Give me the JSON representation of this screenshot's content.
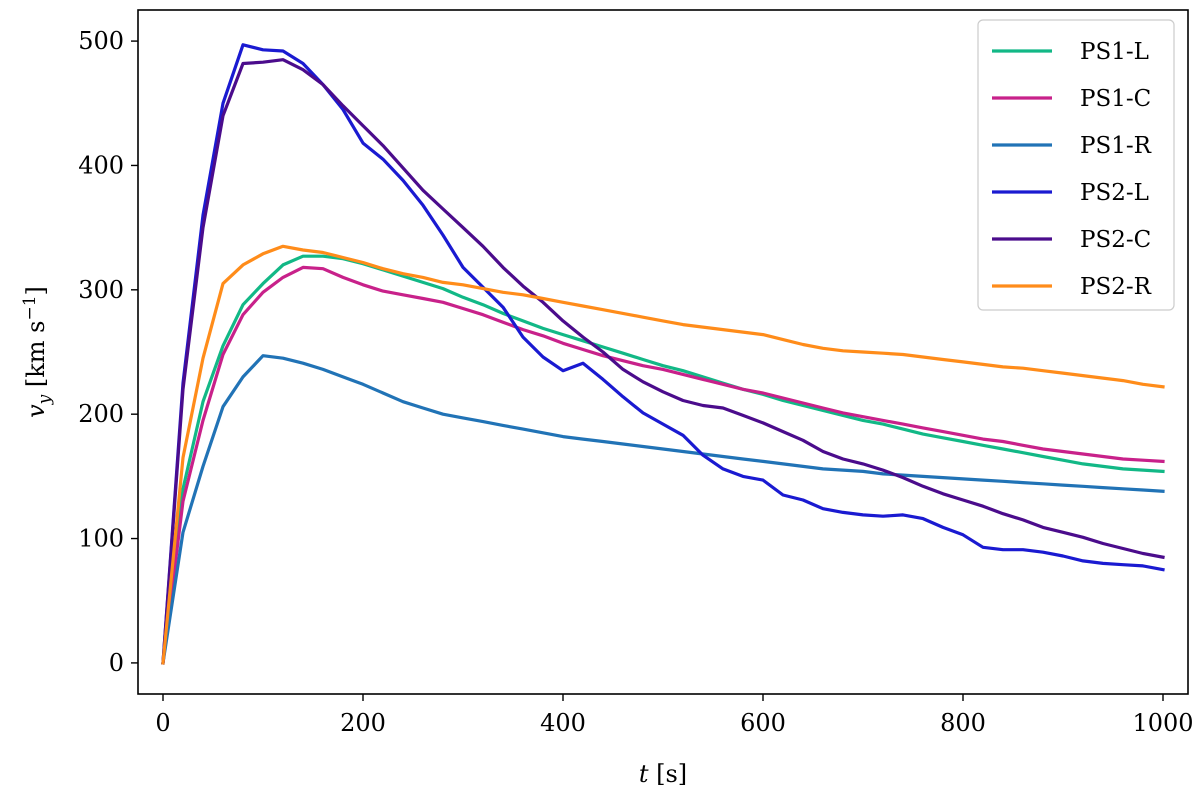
{
  "chart_data": {
    "type": "line",
    "xlabel_var": "t",
    "xlabel_unit": " [s]",
    "ylabel_var": "v",
    "ylabel_sub": "y",
    "ylabel_unit": " [km s",
    "ylabel_exp": "−1",
    "ylabel_close": "]",
    "xlim": [
      -25,
      1025
    ],
    "ylim": [
      -25,
      525
    ],
    "xticks": [
      0,
      200,
      400,
      600,
      800,
      1000
    ],
    "yticks": [
      0,
      100,
      200,
      300,
      400,
      500
    ],
    "grid": false,
    "legend_position": "top-right",
    "x": [
      0,
      20,
      40,
      60,
      80,
      100,
      120,
      140,
      160,
      180,
      200,
      220,
      240,
      260,
      280,
      300,
      320,
      340,
      360,
      380,
      400,
      420,
      440,
      460,
      480,
      500,
      520,
      540,
      560,
      580,
      600,
      620,
      640,
      660,
      680,
      700,
      720,
      740,
      760,
      780,
      800,
      820,
      840,
      860,
      880,
      900,
      920,
      940,
      960,
      980,
      1000
    ],
    "series": [
      {
        "name": "PS1-L",
        "color": "#12b886",
        "values": [
          0,
          140,
          210,
          255,
          288,
          305,
          320,
          327,
          327,
          325,
          321,
          316,
          311,
          306,
          301,
          294,
          288,
          281,
          275,
          269,
          264,
          259,
          254,
          249,
          244,
          239,
          235,
          230,
          225,
          220,
          216,
          211,
          207,
          203,
          199,
          195,
          192,
          188,
          184,
          181,
          178,
          175,
          172,
          169,
          166,
          163,
          160,
          158,
          156,
          155,
          154
        ]
      },
      {
        "name": "PS1-C",
        "color": "#c8218a",
        "values": [
          0,
          130,
          195,
          248,
          280,
          298,
          310,
          318,
          317,
          310,
          304,
          299,
          296,
          293,
          290,
          285,
          280,
          274,
          268,
          263,
          257,
          252,
          247,
          243,
          239,
          236,
          232,
          228,
          224,
          220,
          217,
          213,
          209,
          205,
          201,
          198,
          195,
          192,
          189,
          186,
          183,
          180,
          178,
          175,
          172,
          170,
          168,
          166,
          164,
          163,
          162
        ]
      },
      {
        "name": "PS1-R",
        "color": "#2173b6",
        "values": [
          0,
          105,
          158,
          206,
          230,
          247,
          245,
          241,
          236,
          230,
          224,
          217,
          210,
          205,
          200,
          197,
          194,
          191,
          188,
          185,
          182,
          180,
          178,
          176,
          174,
          172,
          170,
          168,
          166,
          164,
          162,
          160,
          158,
          156,
          155,
          154,
          152,
          151,
          150,
          149,
          148,
          147,
          146,
          145,
          144,
          143,
          142,
          141,
          140,
          139,
          138
        ]
      },
      {
        "name": "PS2-L",
        "color": "#1a1ad1",
        "values": [
          0,
          225,
          360,
          450,
          497,
          493,
          492,
          482,
          465,
          445,
          418,
          405,
          388,
          368,
          344,
          318,
          302,
          286,
          262,
          246,
          235,
          241,
          228,
          214,
          201,
          192,
          183,
          167,
          156,
          150,
          147,
          135,
          131,
          124,
          121,
          119,
          118,
          119,
          116,
          109,
          103,
          93,
          91,
          91,
          89,
          86,
          82,
          80,
          79,
          78,
          75
        ]
      },
      {
        "name": "PS2-C",
        "color": "#4b0c8c",
        "values": [
          0,
          220,
          350,
          440,
          482,
          483,
          485,
          477,
          465,
          448,
          432,
          416,
          398,
          380,
          365,
          350,
          335,
          318,
          303,
          290,
          275,
          262,
          250,
          236,
          226,
          218,
          211,
          207,
          205,
          199,
          193,
          186,
          179,
          170,
          164,
          160,
          155,
          149,
          142,
          136,
          131,
          126,
          120,
          115,
          109,
          105,
          101,
          96,
          92,
          88,
          85
        ]
      },
      {
        "name": "PS2-R",
        "color": "#ff8c1a",
        "values": [
          0,
          165,
          245,
          305,
          320,
          329,
          335,
          332,
          330,
          326,
          322,
          317,
          313,
          310,
          306,
          304,
          301,
          298,
          296,
          293,
          290,
          287,
          284,
          281,
          278,
          275,
          272,
          270,
          268,
          266,
          264,
          260,
          256,
          253,
          251,
          250,
          249,
          248,
          246,
          244,
          242,
          240,
          238,
          237,
          235,
          233,
          231,
          229,
          227,
          224,
          222
        ]
      }
    ]
  }
}
